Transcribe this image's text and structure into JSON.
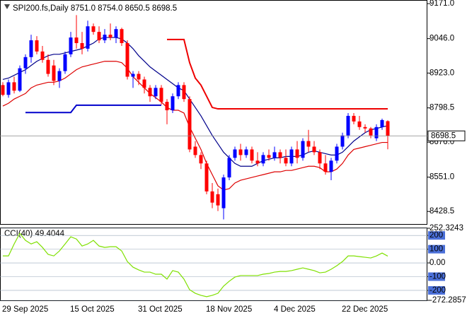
{
  "chart_data": [
    {
      "type": "candlestick",
      "title": "SPI200.fs,Daily 8751.0 8754.0 8650.5 8698.5",
      "categories": [
        "29 Sep 2025",
        null,
        null,
        null,
        null,
        null,
        null,
        null,
        null,
        null,
        null,
        null,
        "15 Oct 2025",
        null,
        null,
        null,
        null,
        null,
        null,
        null,
        null,
        null,
        null,
        null,
        "31 Oct 2025",
        null,
        null,
        null,
        null,
        null,
        null,
        null,
        null,
        null,
        null,
        null,
        "18 Nov 2025",
        null,
        null,
        null,
        null,
        null,
        null,
        null,
        null,
        null,
        null,
        null,
        "4 Dec 2025",
        null,
        null,
        null,
        null,
        null,
        null,
        null,
        null,
        null,
        null,
        null,
        "22 Dec 2025",
        null,
        null,
        null,
        null,
        null,
        null,
        null,
        null
      ],
      "open": [
        8880,
        8845,
        8890,
        8860,
        8940,
        8980,
        9040,
        9000,
        8970,
        8950,
        8895,
        8930,
        8990,
        9050,
        9030,
        9010,
        9090,
        9070,
        9040,
        9060,
        9050,
        9080,
        9030,
        8910,
        8920,
        8900,
        8870,
        8840,
        8870,
        8820,
        8790,
        8840,
        8880,
        8830,
        8660,
        8630,
        8600,
        8500,
        8490,
        8440,
        8550,
        8620,
        8650,
        8630,
        8650,
        8610,
        8600,
        8630,
        8620,
        8640,
        8620,
        8600,
        8650,
        8620,
        8680,
        8660,
        8640,
        8600,
        8570,
        8610,
        8660,
        8700,
        8770,
        8750,
        8730,
        8725,
        8690,
        8730,
        8751
      ],
      "high": [
        8890,
        8900,
        8910,
        8950,
        8990,
        9060,
        9055,
        9020,
        8990,
        8970,
        8940,
        9000,
        9070,
        9130,
        9070,
        9110,
        9100,
        9090,
        9080,
        9100,
        9090,
        9085,
        9040,
        8930,
        8930,
        8910,
        8880,
        8880,
        8880,
        8830,
        8850,
        8890,
        8890,
        8840,
        8680,
        8640,
        8610,
        8530,
        8510,
        8560,
        8630,
        8660,
        8670,
        8660,
        8660,
        8640,
        8640,
        8650,
        8660,
        8650,
        8650,
        8660,
        8680,
        8690,
        8720,
        8680,
        8650,
        8630,
        8620,
        8670,
        8710,
        8780,
        8780,
        8770,
        8740,
        8730,
        8740,
        8760,
        8754
      ],
      "low": [
        8840,
        8835,
        8850,
        8855,
        8920,
        8960,
        8990,
        8960,
        8910,
        8880,
        8870,
        8920,
        8980,
        9010,
        8990,
        9000,
        9060,
        9030,
        9030,
        9040,
        9030,
        9020,
        8900,
        8870,
        8880,
        8850,
        8820,
        8830,
        8810,
        8740,
        8780,
        8830,
        8820,
        8640,
        8620,
        8580,
        8490,
        8440,
        8430,
        8400,
        8540,
        8610,
        8610,
        8620,
        8600,
        8590,
        8590,
        8610,
        8610,
        8600,
        8590,
        8590,
        8600,
        8610,
        8640,
        8630,
        8580,
        8560,
        8540,
        8600,
        8650,
        8690,
        8740,
        8720,
        8710,
        8690,
        8680,
        8720,
        8650.5
      ],
      "close": [
        8845,
        8890,
        8860,
        8940,
        8980,
        9040,
        9000,
        8970,
        8920,
        8895,
        8930,
        8990,
        9050,
        9030,
        9010,
        9090,
        9070,
        9040,
        9060,
        9050,
        9080,
        9030,
        8910,
        8920,
        8900,
        8870,
        8840,
        8870,
        8820,
        8790,
        8840,
        8880,
        8830,
        8650,
        8630,
        8600,
        8500,
        8460,
        8450,
        8550,
        8620,
        8650,
        8630,
        8650,
        8610,
        8600,
        8630,
        8620,
        8640,
        8620,
        8600,
        8650,
        8620,
        8680,
        8660,
        8640,
        8600,
        8570,
        8610,
        8660,
        8700,
        8770,
        8750,
        8730,
        8725,
        8700,
        8730,
        8755,
        8698.5
      ],
      "up_color": "#0000ff",
      "down_color": "#ff0000",
      "series": [
        {
          "color": "#00008b",
          "values": [
            8900,
            8905,
            8915,
            8925,
            8935,
            8950,
            8965,
            8975,
            8985,
            8990,
            8990,
            8995,
            9000,
            9005,
            9010,
            9020,
            9030,
            9045,
            9050,
            9050,
            9050,
            9045,
            9030,
            9010,
            8985,
            8965,
            8945,
            8930,
            8915,
            8900,
            8885,
            8870,
            8860,
            8830,
            8800,
            8770,
            8735,
            8700,
            8670,
            8640,
            8620,
            8600,
            8590,
            8590,
            8590,
            8600,
            8610,
            8615,
            8620,
            8620,
            8625,
            8625,
            8625,
            8630,
            8640,
            8645,
            8640,
            8635,
            8630,
            8630,
            8640,
            8660,
            8680,
            8695,
            8710,
            8720,
            8725,
            8730,
            8735
          ]
        },
        {
          "color": "#dd0000",
          "values": [
            8805,
            8815,
            8830,
            8840,
            8850,
            8870,
            8880,
            8885,
            8890,
            8890,
            8895,
            8905,
            8920,
            8935,
            8945,
            8950,
            8955,
            8960,
            8965,
            8965,
            8965,
            8960,
            8940,
            8910,
            8890,
            8870,
            8850,
            8835,
            8820,
            8800,
            8790,
            8790,
            8780,
            8730,
            8690,
            8650,
            8600,
            8560,
            8520,
            8505,
            8510,
            8530,
            8540,
            8545,
            8550,
            8555,
            8560,
            8565,
            8570,
            8570,
            8575,
            8575,
            8580,
            8585,
            8590,
            8590,
            8585,
            8570,
            8570,
            8580,
            8600,
            8630,
            8650,
            8655,
            8660,
            8665,
            8670,
            8675,
            8675
          ]
        },
        {
          "color": "#0000cc",
          "values": [
            null,
            null,
            null,
            null,
            8782,
            8782,
            8782,
            8782,
            8782,
            8782,
            8782,
            8782,
            8782,
            8808,
            8808,
            8808,
            8808,
            8808,
            8808,
            8808,
            8808,
            8808,
            8808,
            8808,
            8808,
            8808,
            8808,
            8808,
            8808,
            null,
            null,
            null,
            null,
            null,
            null,
            null,
            null,
            null,
            null,
            null,
            null,
            null,
            null,
            null,
            null,
            null,
            null,
            null,
            null,
            null,
            null,
            null,
            null,
            null,
            null,
            null,
            null,
            null,
            null,
            null,
            null,
            null,
            null,
            null,
            null,
            null,
            null,
            null,
            null
          ]
        },
        {
          "color": "#ee0000",
          "values": [
            null,
            null,
            null,
            null,
            null,
            null,
            null,
            null,
            null,
            null,
            null,
            null,
            null,
            null,
            null,
            null,
            null,
            null,
            null,
            null,
            null,
            null,
            null,
            null,
            null,
            null,
            null,
            null,
            null,
            9043,
            9043,
            9043,
            9043,
            8960,
            8905,
            8880,
            8840,
            8800,
            8795,
            8795,
            8795,
            8795,
            8795,
            8795,
            8795,
            8795,
            8795,
            8795,
            8795,
            8795,
            8795,
            8795,
            8795,
            8795,
            8795,
            8795,
            8795,
            8795,
            8795,
            8795,
            8795,
            8795,
            8795,
            8795,
            8795,
            8795,
            8795,
            8795,
            8795
          ]
        }
      ],
      "ylim": [
        8381,
        9184
      ],
      "yticks": [
        {
          "value": 9171,
          "label": "9171.0"
        },
        {
          "value": 9046,
          "label": "9046.0"
        },
        {
          "value": 8923,
          "label": "8923.0"
        },
        8798.5,
        {
          "value": 8676,
          "label": "8676.0"
        },
        {
          "value": 8551,
          "label": "8551.0"
        },
        8428.5
      ]
    },
    {
      "type": "line",
      "title": "CCI(40)",
      "series": [
        {
          "color": "#7fe000",
          "values": [
            51,
            51,
            138,
            215,
            164,
            138,
            154,
            113,
            62,
            51,
            87,
            138,
            190,
            174,
            123,
            138,
            164,
            123,
            113,
            118,
            118,
            87,
            10,
            -31,
            -51,
            -67,
            -67,
            -82,
            -82,
            -118,
            -56,
            -67,
            -118,
            -195,
            -221,
            -236,
            -246,
            -236,
            -221,
            -169,
            -133,
            -103,
            -92,
            -92,
            -92,
            -92,
            -82,
            -77,
            -67,
            -62,
            -62,
            -56,
            -46,
            -36,
            -46,
            -56,
            -72,
            -67,
            -46,
            -20,
            10,
            51,
            51,
            46,
            41,
            36,
            51,
            72,
            49.4044
          ]
        }
      ],
      "ylim": [
        -272.2857,
        252.3243
      ],
      "yticks": [
        252.3243,
        200,
        100,
        {
          "value": 0,
          "label": "0.00"
        },
        -100,
        -200,
        -272.2857
      ],
      "tick_box_color": "#4a6fd8"
    }
  ]
}
